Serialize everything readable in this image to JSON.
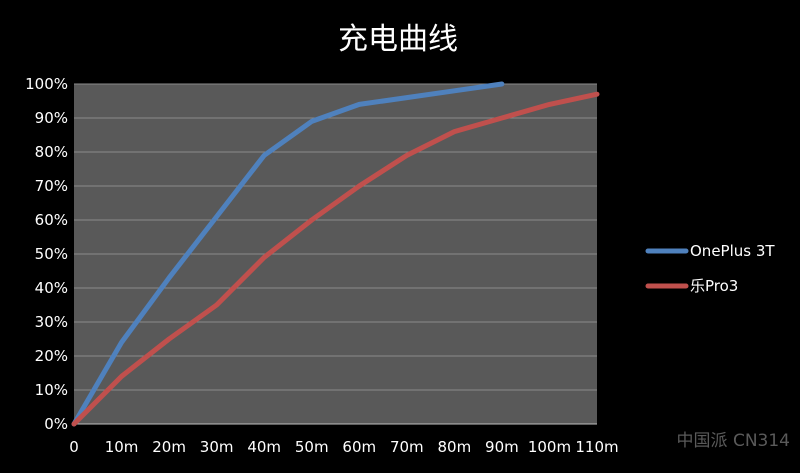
{
  "chart_data": {
    "type": "line",
    "title": "充电曲线",
    "xlabel": "",
    "ylabel": "",
    "categories": [
      "0",
      "10m",
      "20m",
      "30m",
      "40m",
      "50m",
      "60m",
      "70m",
      "80m",
      "90m",
      "100m",
      "110m"
    ],
    "yticks": [
      "0%",
      "10%",
      "20%",
      "30%",
      "40%",
      "50%",
      "60%",
      "70%",
      "80%",
      "90%",
      "100%"
    ],
    "ylim": [
      0,
      100
    ],
    "grid": true,
    "legend_position": "right",
    "series": [
      {
        "name": "OnePlus 3T",
        "color": "#4f81bd",
        "values": [
          0,
          24,
          43,
          61,
          79,
          89,
          94,
          96,
          98,
          100,
          null,
          null
        ]
      },
      {
        "name": "乐Pro3",
        "color": "#c0504d",
        "values": [
          0,
          14,
          25,
          35,
          49,
          60,
          70,
          79,
          86,
          90,
          94,
          97
        ]
      }
    ],
    "plot_background": "#595959",
    "gridline_color": "#8c8c8c"
  },
  "watermark": {
    "text": "中国派 CN314"
  }
}
